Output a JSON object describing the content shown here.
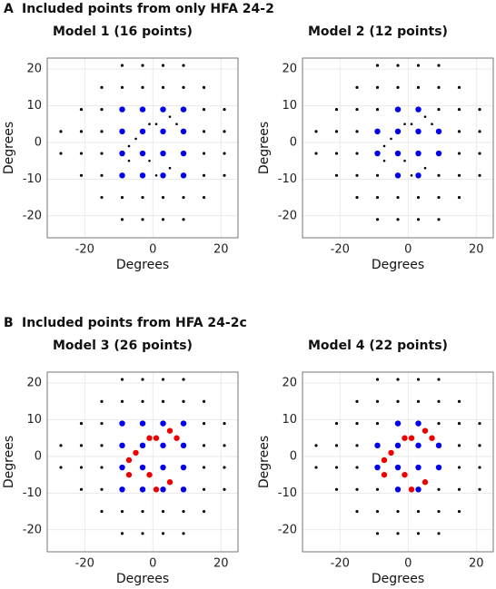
{
  "sections": [
    {
      "letter": "A",
      "title": "Included points from only HFA 24-2"
    },
    {
      "letter": "B",
      "title": "Included points from HFA 24-2c"
    }
  ],
  "chart_data": [
    {
      "type": "scatter",
      "title": "Model 1 (16 points)",
      "xlabel": "Degrees",
      "ylabel": "Degrees",
      "xlim": [
        -31,
        25
      ],
      "ylim": [
        -26,
        23
      ],
      "xticks": [
        -20,
        0,
        20
      ],
      "yticks": [
        -20,
        -10,
        0,
        10,
        20
      ],
      "grid": true,
      "series": [
        {
          "color": "#000000",
          "x": [
            -9,
            -3,
            3,
            9,
            -15,
            -9,
            -3,
            3,
            9,
            15,
            -21,
            -15,
            15,
            21,
            -27,
            -21,
            -15,
            15,
            21,
            -27,
            -21,
            -15,
            15,
            21,
            -21,
            -15,
            15,
            21,
            -15,
            -9,
            -3,
            3,
            9,
            15,
            -9,
            -3,
            3,
            9
          ],
          "values": [
            21,
            21,
            21,
            21,
            15,
            15,
            15,
            15,
            15,
            15,
            9,
            9,
            9,
            9,
            3,
            3,
            3,
            3,
            3,
            -3,
            -3,
            -3,
            -3,
            -3,
            -9,
            -9,
            -9,
            -9,
            -15,
            -15,
            -15,
            -15,
            -15,
            -15,
            -21,
            -21,
            -21,
            -21
          ]
        },
        {
          "color": "#0000ee",
          "x": [
            -9,
            -3,
            3,
            9,
            -9,
            -3,
            3,
            9,
            -9,
            -3,
            3,
            9,
            -9,
            -3,
            3,
            9
          ],
          "values": [
            9,
            9,
            9,
            9,
            3,
            3,
            3,
            3,
            -3,
            -3,
            -3,
            -3,
            -9,
            -9,
            -9,
            -9
          ]
        },
        {
          "color": "#000000",
          "x": [
            -1,
            1,
            5,
            7,
            -5,
            -7,
            -7,
            -1,
            1,
            5
          ],
          "values": [
            5,
            5,
            7,
            5,
            1,
            -1,
            -5,
            -5,
            -9,
            -7
          ]
        }
      ]
    },
    {
      "type": "scatter",
      "title": "Model 2 (12 points)",
      "xlabel": "Degrees",
      "ylabel": "Degrees",
      "xlim": [
        -31,
        25
      ],
      "ylim": [
        -26,
        23
      ],
      "xticks": [
        -20,
        0,
        20
      ],
      "yticks": [
        -20,
        -10,
        0,
        10,
        20
      ],
      "grid": true,
      "series": [
        {
          "color": "#000000",
          "x": [
            -9,
            -3,
            3,
            9,
            -15,
            -9,
            -3,
            3,
            9,
            15,
            -21,
            -15,
            -9,
            9,
            15,
            21,
            -27,
            -21,
            -15,
            15,
            21,
            -27,
            -21,
            -15,
            15,
            21,
            -21,
            -15,
            -9,
            9,
            15,
            21,
            -15,
            -9,
            -3,
            3,
            9,
            15,
            -9,
            -3,
            3,
            9
          ],
          "values": [
            21,
            21,
            21,
            21,
            15,
            15,
            15,
            15,
            15,
            15,
            9,
            9,
            9,
            9,
            9,
            9,
            3,
            3,
            3,
            3,
            3,
            -3,
            -3,
            -3,
            -3,
            -3,
            -9,
            -9,
            -9,
            -9,
            -9,
            -9,
            -15,
            -15,
            -15,
            -15,
            -15,
            -15,
            -21,
            -21,
            -21,
            -21
          ]
        },
        {
          "color": "#0000ee",
          "x": [
            -3,
            3,
            -9,
            -3,
            3,
            9,
            -9,
            -3,
            3,
            9,
            -3,
            3
          ],
          "values": [
            9,
            9,
            3,
            3,
            3,
            3,
            -3,
            -3,
            -3,
            -3,
            -9,
            -9
          ]
        },
        {
          "color": "#000000",
          "x": [
            -1,
            1,
            5,
            7,
            -5,
            -7,
            -7,
            -1,
            1,
            5
          ],
          "values": [
            5,
            5,
            7,
            5,
            1,
            -1,
            -5,
            -5,
            -9,
            -7
          ]
        }
      ]
    },
    {
      "type": "scatter",
      "title": "Model 3 (26 points)",
      "xlabel": "Degrees",
      "ylabel": "Degrees",
      "xlim": [
        -31,
        25
      ],
      "ylim": [
        -26,
        23
      ],
      "xticks": [
        -20,
        0,
        20
      ],
      "yticks": [
        -20,
        -10,
        0,
        10,
        20
      ],
      "grid": true,
      "series": [
        {
          "color": "#000000",
          "x": [
            -9,
            -3,
            3,
            9,
            -15,
            -9,
            -3,
            3,
            9,
            15,
            -21,
            -15,
            15,
            21,
            -27,
            -21,
            -15,
            15,
            21,
            -27,
            -21,
            -15,
            15,
            21,
            -21,
            -15,
            15,
            21,
            -15,
            -9,
            -3,
            3,
            9,
            15,
            -9,
            -3,
            3,
            9
          ],
          "values": [
            21,
            21,
            21,
            21,
            15,
            15,
            15,
            15,
            15,
            15,
            9,
            9,
            9,
            9,
            3,
            3,
            3,
            3,
            3,
            -3,
            -3,
            -3,
            -3,
            -3,
            -9,
            -9,
            -9,
            -9,
            -15,
            -15,
            -15,
            -15,
            -15,
            -15,
            -21,
            -21,
            -21,
            -21
          ]
        },
        {
          "color": "#0000ee",
          "x": [
            -9,
            -3,
            3,
            9,
            -9,
            -3,
            3,
            9,
            -9,
            -3,
            3,
            9,
            -9,
            -3,
            3,
            9
          ],
          "values": [
            9,
            9,
            9,
            9,
            3,
            3,
            3,
            3,
            -3,
            -3,
            -3,
            -3,
            -9,
            -9,
            -9,
            -9
          ]
        },
        {
          "color": "#ee0000",
          "x": [
            -1,
            1,
            5,
            7,
            -5,
            -7,
            -7,
            -1,
            1,
            5
          ],
          "values": [
            5,
            5,
            7,
            5,
            1,
            -1,
            -5,
            -5,
            -9,
            -7
          ]
        }
      ]
    },
    {
      "type": "scatter",
      "title": "Model 4 (22 points)",
      "xlabel": "Degrees",
      "ylabel": "Degrees",
      "xlim": [
        -31,
        25
      ],
      "ylim": [
        -26,
        23
      ],
      "xticks": [
        -20,
        0,
        20
      ],
      "yticks": [
        -20,
        -10,
        0,
        10,
        20
      ],
      "grid": true,
      "series": [
        {
          "color": "#000000",
          "x": [
            -9,
            -3,
            3,
            9,
            -15,
            -9,
            -3,
            3,
            9,
            15,
            -21,
            -15,
            -9,
            9,
            15,
            21,
            -27,
            -21,
            -15,
            15,
            21,
            -27,
            -21,
            -15,
            15,
            21,
            -21,
            -15,
            -9,
            9,
            15,
            21,
            -15,
            -9,
            -3,
            3,
            9,
            15,
            -9,
            -3,
            3,
            9
          ],
          "values": [
            21,
            21,
            21,
            21,
            15,
            15,
            15,
            15,
            15,
            15,
            9,
            9,
            9,
            9,
            9,
            9,
            3,
            3,
            3,
            3,
            3,
            -3,
            -3,
            -3,
            -3,
            -3,
            -9,
            -9,
            -9,
            -9,
            -9,
            -9,
            -15,
            -15,
            -15,
            -15,
            -15,
            -15,
            -21,
            -21,
            -21,
            -21
          ]
        },
        {
          "color": "#0000ee",
          "x": [
            -3,
            3,
            -9,
            -3,
            3,
            9,
            -9,
            -3,
            3,
            9,
            -3,
            3
          ],
          "values": [
            9,
            9,
            3,
            3,
            3,
            3,
            -3,
            -3,
            -3,
            -3,
            -9,
            -9
          ]
        },
        {
          "color": "#ee0000",
          "x": [
            -1,
            1,
            5,
            7,
            -5,
            -7,
            -7,
            -1,
            1,
            5
          ],
          "values": [
            5,
            5,
            7,
            5,
            1,
            -1,
            -5,
            -5,
            -9,
            -7
          ]
        }
      ]
    }
  ]
}
